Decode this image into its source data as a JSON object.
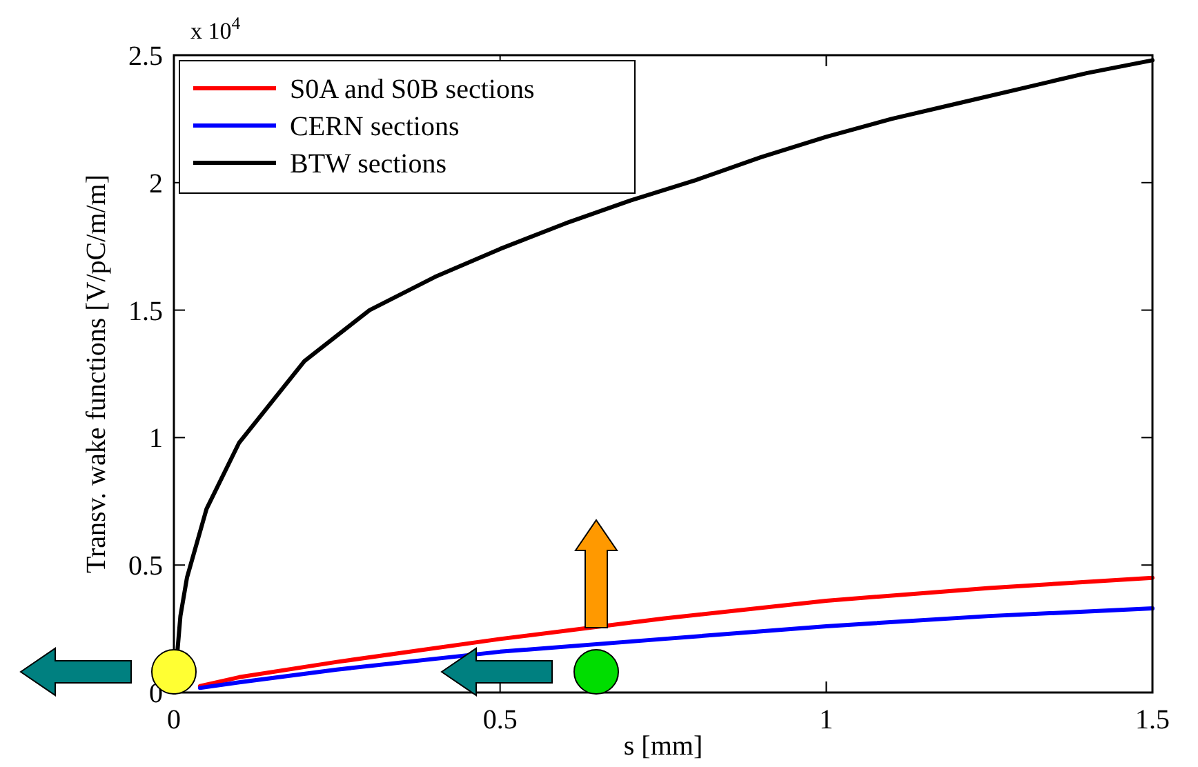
{
  "chart_data": {
    "type": "line",
    "xlabel": "s [mm]",
    "ylabel": "Transv. wake functions [V/pC/m/m]",
    "annotations": [
      "x 10$^{4}$"
    ],
    "xlim": [
      0,
      1.5
    ],
    "xticks": [
      0,
      0.5,
      1,
      1.5
    ],
    "ylim": [
      0,
      2.5
    ],
    "yticks": [
      0,
      0.5,
      1,
      1.5,
      2,
      2.5
    ],
    "grid": false,
    "legend": "top left",
    "line_style": "solid",
    "marker": "none",
    "series": [
      {
        "name": "S0A and S0B sections",
        "color": "#ff0000",
        "x": [
          0.04,
          0.1,
          0.25,
          0.5,
          0.75,
          1,
          1.25,
          1.5
        ],
        "values": [
          0.025,
          0.06,
          0.12,
          0.21,
          0.29,
          0.36,
          0.41,
          0.45
        ]
      },
      {
        "name": "CERN sections",
        "color": "#0000ff",
        "x": [
          0.04,
          0.1,
          0.25,
          0.5,
          0.75,
          1,
          1.25,
          1.5
        ],
        "values": [
          0.018,
          0.04,
          0.09,
          0.16,
          0.21,
          0.26,
          0.3,
          0.33
        ]
      },
      {
        "name": "BTW sections",
        "color": "#000000",
        "x": [
          0,
          0.01,
          0.02,
          0.05,
          0.1,
          0.2,
          0.3,
          0.4,
          0.5,
          0.6,
          0.7,
          0.8,
          0.9,
          1,
          1.1,
          1.2,
          1.3,
          1.4,
          1.5
        ],
        "values": [
          0,
          0.3,
          0.45,
          0.72,
          0.98,
          1.3,
          1.5,
          1.63,
          1.74,
          1.84,
          1.93,
          2.01,
          2.1,
          2.18,
          2.25,
          2.31,
          2.37,
          2.43,
          2.48
        ]
      }
    ]
  }
}
